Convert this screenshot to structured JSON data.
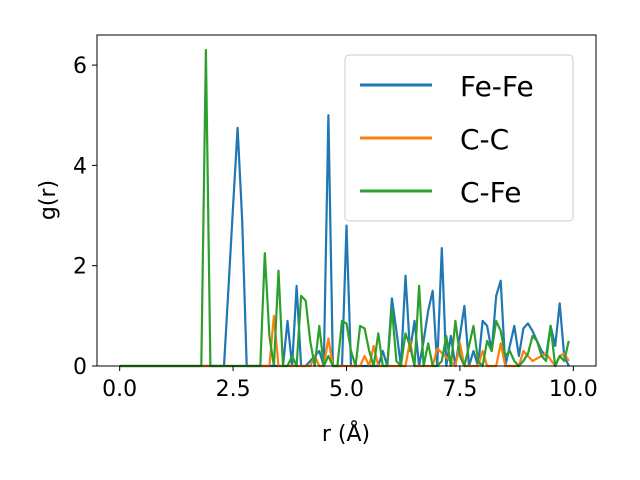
{
  "chart_data": {
    "type": "line",
    "xlabel": "r (Å)",
    "ylabel": "g(r)",
    "xlim": [
      -0.5,
      10.5
    ],
    "ylim": [
      0,
      6.6
    ],
    "xticks": [
      {
        "value": 0.0,
        "label": "0.0"
      },
      {
        "value": 2.5,
        "label": "2.5"
      },
      {
        "value": 5.0,
        "label": "5.0"
      },
      {
        "value": 7.5,
        "label": "7.5"
      },
      {
        "value": 10.0,
        "label": "10.0"
      }
    ],
    "yticks": [
      {
        "value": 0,
        "label": "0"
      },
      {
        "value": 2,
        "label": "2"
      },
      {
        "value": 4,
        "label": "4"
      },
      {
        "value": 6,
        "label": "6"
      }
    ],
    "grid": false,
    "legend_position": "top-right",
    "series": [
      {
        "name": "Fe-Fe",
        "color": "#1f77b4",
        "x": [
          0.0,
          2.3,
          2.4,
          2.5,
          2.6,
          2.7,
          2.8,
          2.9,
          3.6,
          3.7,
          3.8,
          3.9,
          4.0,
          4.1,
          4.4,
          4.5,
          4.6,
          4.7,
          4.8,
          4.9,
          5.0,
          5.1,
          5.5,
          5.6,
          5.7,
          5.8,
          5.9,
          6.0,
          6.1,
          6.2,
          6.3,
          6.4,
          6.5,
          6.6,
          6.7,
          6.8,
          6.9,
          7.0,
          7.1,
          7.2,
          7.3,
          7.4,
          7.5,
          7.6,
          7.7,
          7.8,
          7.9,
          8.0,
          8.1,
          8.2,
          8.3,
          8.4,
          8.5,
          8.6,
          8.7,
          8.8,
          8.9,
          9.0,
          9.1,
          9.2,
          9.3,
          9.4,
          9.5,
          9.6,
          9.7,
          9.8,
          9.9
        ],
        "y": [
          0,
          0,
          1.6,
          3.2,
          4.75,
          2.9,
          0,
          0,
          0,
          0.9,
          0,
          1.6,
          0,
          0,
          0.3,
          0,
          5.0,
          0,
          0,
          0,
          2.8,
          0,
          0,
          0,
          0,
          0.3,
          0,
          1.35,
          0.7,
          0,
          1.8,
          0.3,
          0.9,
          0,
          0.5,
          1.1,
          1.5,
          0,
          2.35,
          0,
          0.6,
          0,
          0.6,
          1.2,
          0,
          0.3,
          0,
          0.9,
          0.8,
          0.3,
          1.4,
          1.7,
          0,
          0.4,
          0.8,
          0.2,
          0.75,
          0.85,
          0.7,
          0.5,
          0.3,
          0.2,
          0.8,
          0.4,
          1.25,
          0.2,
          0
        ]
      },
      {
        "name": "C-C",
        "color": "#ff7f0e",
        "x": [
          0.0,
          3.2,
          3.3,
          3.4,
          3.5,
          4.2,
          4.3,
          4.4,
          4.5,
          4.6,
          4.7,
          4.8,
          5.3,
          5.4,
          5.5,
          5.6,
          5.7,
          5.8,
          6.3,
          6.4,
          6.5,
          6.9,
          7.0,
          7.4,
          7.5,
          7.6,
          7.9,
          8.0,
          8.1,
          8.3,
          8.4,
          8.5,
          8.6,
          8.8,
          8.9,
          9.0,
          9.1,
          9.2,
          9.3,
          9.4,
          9.6,
          9.7,
          9.8,
          9.9
        ],
        "y": [
          0,
          0,
          0,
          1.0,
          0,
          0,
          0.2,
          0,
          0,
          0.55,
          0,
          0,
          0,
          0.2,
          0,
          0.4,
          0,
          0,
          0,
          0.5,
          0,
          0,
          0.35,
          0,
          0.45,
          0,
          0,
          0.3,
          0,
          0,
          0.45,
          0,
          0,
          0,
          0.3,
          0.2,
          0.1,
          0.15,
          0.2,
          0.25,
          0,
          0.2,
          0.25,
          0.1
        ]
      },
      {
        "name": "C-Fe",
        "color": "#2ca02c",
        "x": [
          0.0,
          1.8,
          1.9,
          2.0,
          3.1,
          3.2,
          3.3,
          3.4,
          3.5,
          3.6,
          3.7,
          3.8,
          3.9,
          4.0,
          4.1,
          4.2,
          4.3,
          4.4,
          4.5,
          4.6,
          4.7,
          4.8,
          4.9,
          5.0,
          5.1,
          5.2,
          5.3,
          5.4,
          5.5,
          5.6,
          5.7,
          5.8,
          5.9,
          6.0,
          6.1,
          6.2,
          6.3,
          6.4,
          6.5,
          6.6,
          6.7,
          6.8,
          6.9,
          7.0,
          7.1,
          7.2,
          7.3,
          7.4,
          7.5,
          7.6,
          7.7,
          7.8,
          7.9,
          8.0,
          8.1,
          8.2,
          8.3,
          8.4,
          8.5,
          8.6,
          8.7,
          8.8,
          8.9,
          9.0,
          9.1,
          9.2,
          9.3,
          9.4,
          9.5,
          9.6,
          9.7,
          9.8,
          9.9
        ],
        "y": [
          0,
          0,
          6.3,
          0,
          0,
          2.25,
          0.6,
          0,
          1.9,
          0,
          0,
          0.2,
          0,
          1.4,
          1.3,
          0.5,
          0,
          0.8,
          0,
          0.2,
          0,
          0,
          0.9,
          0.85,
          0.3,
          0,
          0.8,
          0.75,
          0.3,
          0,
          0.65,
          0,
          0,
          1.15,
          0.1,
          0,
          0.65,
          0.4,
          0,
          1.6,
          0,
          0.45,
          0,
          0,
          0.1,
          0.6,
          0,
          0.9,
          0.2,
          0,
          0.4,
          0.8,
          0.1,
          0,
          0.5,
          0.3,
          0.9,
          0.7,
          0.2,
          0.3,
          0.1,
          0,
          0.1,
          0.25,
          0.6,
          0.5,
          0.2,
          0.1,
          0.8,
          0,
          0.2,
          0.1,
          0.5
        ]
      }
    ]
  }
}
